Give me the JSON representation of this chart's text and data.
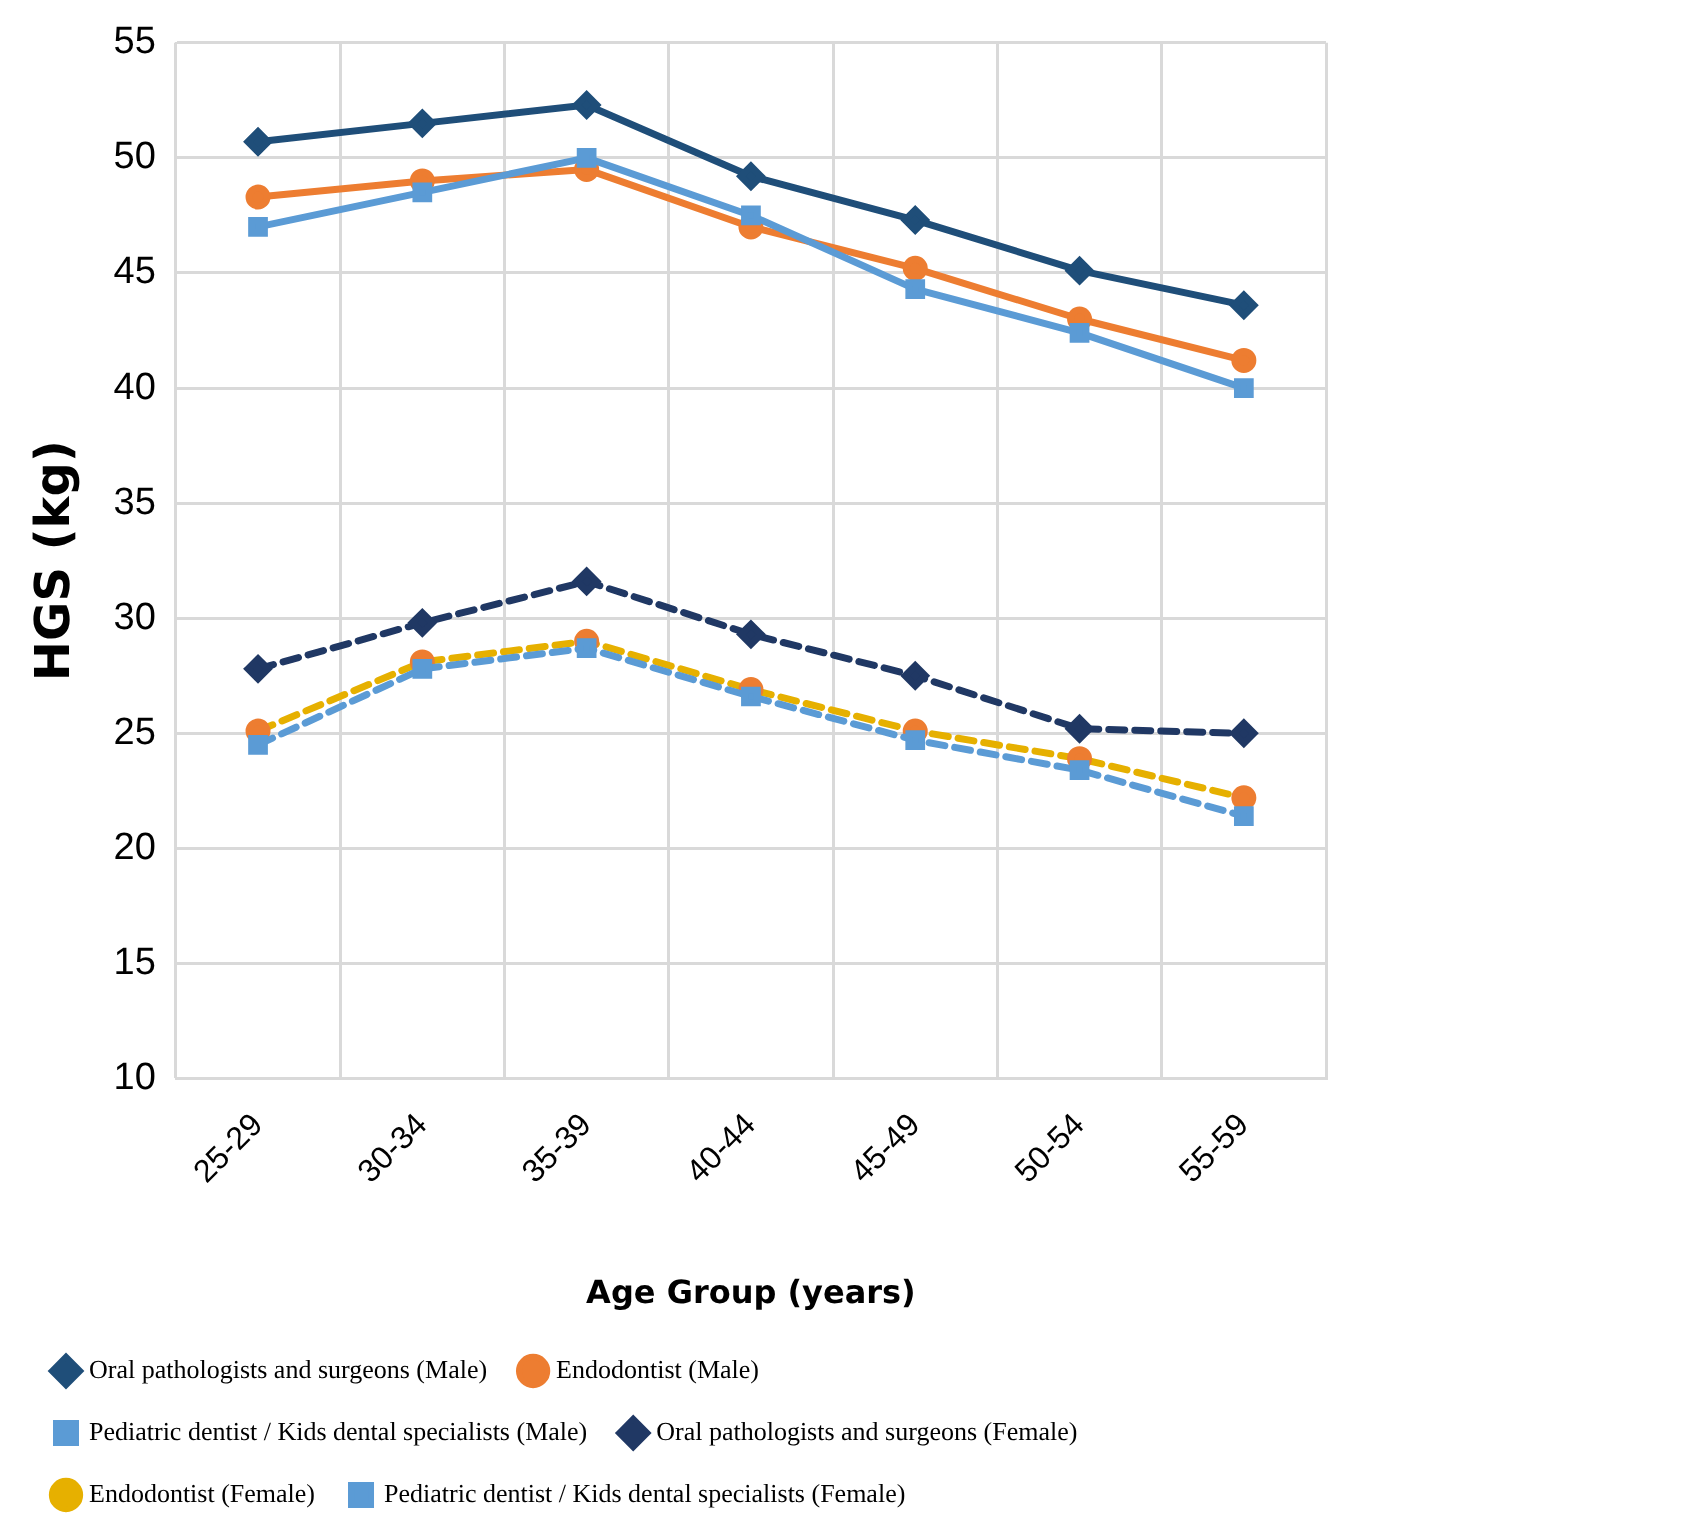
{
  "chart_data": {
    "type": "line",
    "xlabel": "Age Group (years)",
    "ylabel": "HGS (kg)",
    "categories": [
      "25-29",
      "30-34",
      "35-39",
      "40-44",
      "45-49",
      "50-54",
      "55-59"
    ],
    "ylim": [
      10,
      55
    ],
    "yticks": [
      10,
      15,
      20,
      25,
      30,
      35,
      40,
      45,
      50,
      55
    ],
    "grid": true,
    "legend": "bottom",
    "series": [
      {
        "name": "Oral pathologists and surgeons (Male)",
        "color": "#1f4e79",
        "marker": "diamond",
        "line_style": "solid",
        "values": [
          50.7,
          51.5,
          52.3,
          49.2,
          47.3,
          45.1,
          43.6
        ]
      },
      {
        "name": "Endodontist (Male)",
        "color": "#ed7d31",
        "marker": "circle",
        "line_style": "solid",
        "values": [
          48.3,
          49.0,
          49.5,
          47.0,
          45.2,
          43.0,
          41.2
        ]
      },
      {
        "name": "Pediatric dentist / Kids dental specialists (Male)",
        "color": "#5b9bd5",
        "marker": "square",
        "line_style": "solid",
        "values": [
          47.0,
          48.5,
          50.0,
          47.5,
          44.3,
          42.4,
          40.0
        ]
      },
      {
        "name": "Oral pathologists and surgeons (Female)",
        "color": "#203864",
        "marker": "diamond",
        "line_style": "dashed",
        "values": [
          27.8,
          29.8,
          31.6,
          29.3,
          27.5,
          25.2,
          25.0
        ]
      },
      {
        "name": "Endodontist (Female)",
        "color": "#e6b000",
        "colors": [
          "#ed7d31",
          "#ed7d31",
          "#ed7d31",
          "#ed7d31",
          "#ed7d31",
          "#ed7d31",
          "#ed7d31"
        ],
        "marker": "circle",
        "line_style": "dashed",
        "values": [
          25.1,
          28.1,
          29.0,
          26.9,
          25.1,
          23.9,
          22.2
        ]
      },
      {
        "name": "Pediatric dentist / Kids dental specialists (Female)",
        "color": "#5b9bd5",
        "marker": "square",
        "line_style": "dashed",
        "values": [
          24.5,
          27.8,
          28.7,
          26.6,
          24.7,
          23.4,
          21.4
        ]
      }
    ]
  }
}
